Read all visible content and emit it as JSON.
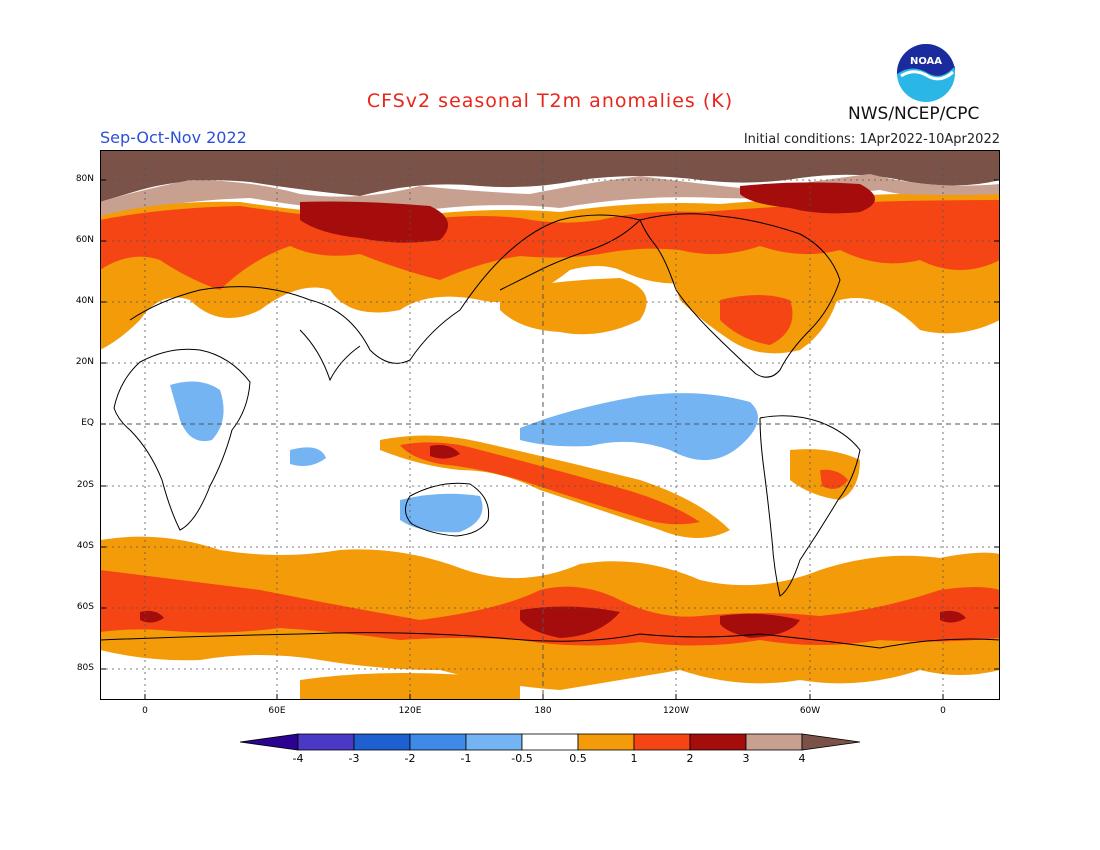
{
  "header": {
    "title": "CFSv2 seasonal T2m anomalies (K)",
    "season": "Sep-Oct-Nov 2022",
    "initial_conditions": "Initial conditions: 1Apr2022-10Apr2022",
    "agency": "NWS/NCEP/CPC",
    "logo_text": "NOAA"
  },
  "map": {
    "lat_labels": [
      "80N",
      "60N",
      "40N",
      "20N",
      "EQ",
      "20S",
      "40S",
      "60S",
      "80S"
    ],
    "lon_labels": [
      "0",
      "60E",
      "120E",
      "180",
      "120W",
      "60W",
      "0"
    ],
    "projection": "cylindrical equidistant, centered on 180",
    "grid": "dotted 20° lat / 30° lon, dashed equator and 180° meridian"
  },
  "legend": {
    "tick_labels": [
      "-4",
      "-3",
      "-2",
      "-1",
      "-0.5",
      "0.5",
      "1",
      "2",
      "3",
      "4"
    ],
    "colors": {
      "below_-4": "#2a0490",
      "-4_-3": "#4a38c6",
      "-3_-2": "#1f60d0",
      "-2_-1": "#3f8ae8",
      "-1_-0.5": "#75b4f2",
      "-0.5_0.5": "#ffffff",
      "0.5_1": "#f49b09",
      "1_2": "#f54514",
      "2_3": "#a50c0c",
      "3_4": "#c8a090",
      "above_4": "#7a5248"
    }
  }
}
